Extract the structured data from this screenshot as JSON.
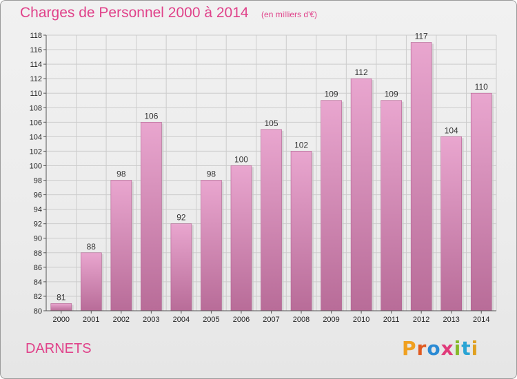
{
  "header": {
    "title": "Charges de Personnel 2000 à 2014",
    "unit": "(en milliers d'€)"
  },
  "footer": {
    "place": "DARNETS",
    "logo": "Proxiti",
    "logo_colors": [
      "#f0a020",
      "#e05a20",
      "#2a8ad4",
      "#e03a7a",
      "#86b828",
      "#2aa4d4",
      "#e0a020"
    ]
  },
  "colors": {
    "accent": "#e0428a",
    "bar_light": "#e9a6cf",
    "bar_dark": "#b86c98",
    "grid": "#cccccc"
  },
  "chart_data": {
    "type": "bar",
    "categories": [
      "2000",
      "2001",
      "2002",
      "2003",
      "2004",
      "2005",
      "2006",
      "2007",
      "2008",
      "2009",
      "2010",
      "2011",
      "2012",
      "2013",
      "2014"
    ],
    "values": [
      81,
      88,
      98,
      106,
      92,
      98,
      100,
      105,
      102,
      109,
      112,
      109,
      117,
      104,
      110
    ],
    "title": "Charges de Personnel 2000 à 2014",
    "xlabel": "",
    "ylabel": "",
    "ylim": [
      80,
      118
    ],
    "yticks": [
      80,
      82,
      84,
      86,
      88,
      90,
      92,
      94,
      96,
      98,
      100,
      102,
      104,
      106,
      108,
      110,
      112,
      114,
      116,
      118
    ],
    "grid": true,
    "legend": "none"
  }
}
